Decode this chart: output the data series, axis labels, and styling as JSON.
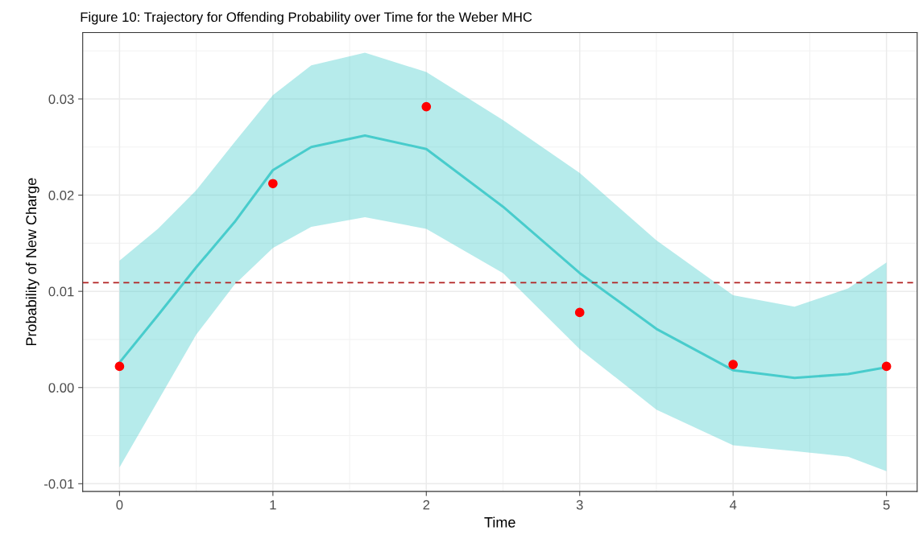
{
  "chart_data": {
    "type": "line",
    "title": "Figure 10: Trajectory for Offending Probability over Time for the Weber MHC",
    "xlabel": "Time",
    "ylabel": "Probability of New Charge",
    "series": [
      {
        "color": "#48cccc",
        "x": [
          0,
          0.25,
          0.5,
          0.75,
          1,
          1.25,
          1.6,
          2,
          2.5,
          3,
          3.5,
          4,
          4.4,
          4.75,
          5
        ],
        "values": [
          0.0026,
          0.0075,
          0.0125,
          0.0172,
          0.0226,
          0.025,
          0.0262,
          0.0248,
          0.0188,
          0.0119,
          0.0061,
          0.0018,
          0.001,
          0.0014,
          0.0021
        ],
        "lower": [
          -0.0083,
          -0.0014,
          0.0055,
          0.0107,
          0.0145,
          0.0167,
          0.0177,
          0.0165,
          0.0119,
          0.004,
          -0.0023,
          -0.006,
          -0.0066,
          -0.0072,
          -0.0087
        ],
        "upper": [
          0.0132,
          0.0165,
          0.0205,
          0.0255,
          0.0304,
          0.0335,
          0.0348,
          0.0328,
          0.0278,
          0.0223,
          0.0153,
          0.0096,
          0.0084,
          0.0103,
          0.013
        ]
      },
      {
        "type": "scatter",
        "marker": "circle",
        "color": "#ff0000",
        "x": [
          0,
          1,
          2,
          3,
          4,
          5
        ],
        "values": [
          0.0022,
          0.0212,
          0.0292,
          0.0078,
          0.0024,
          0.0022
        ]
      }
    ],
    "ref_lines": [
      {
        "axis": "y",
        "value": 0.0109,
        "color": "#b22222",
        "line_style": "dashed"
      }
    ],
    "xlim": [
      -0.24,
      5.2
    ],
    "ylim": [
      -0.0108,
      0.0369
    ],
    "xticks": [
      0,
      1,
      2,
      3,
      4,
      5
    ],
    "yticks": [
      {
        "value": -0.01,
        "label": "-0.01"
      },
      {
        "value": 0,
        "label": "0.00"
      },
      {
        "value": 0.01,
        "label": "0.01"
      },
      {
        "value": 0.02,
        "label": "0.02"
      },
      {
        "value": 0.03,
        "label": "0.03"
      }
    ],
    "grid": true
  }
}
